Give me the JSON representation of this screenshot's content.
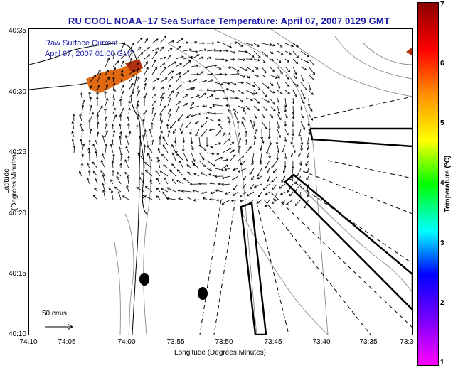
{
  "title": "RU COOL  NOAA−17  Sea Surface Temperature:  April 07, 2007 0129 GMT",
  "overlay": {
    "line1": "Raw Surface Current",
    "line2": "April 07, 2007 01:00 GMT"
  },
  "axes": {
    "ylabel": "Latitude (Degrees:Minutes)",
    "xlabel": "Longitude (Degrees:Minutes)",
    "yticks": [
      "40:35",
      "40:30",
      "40:25",
      "40:20",
      "40:15",
      "40:10"
    ],
    "xticks": [
      "74:10",
      "74:05",
      "74:00",
      "73:55",
      "73:50",
      "73:45",
      "73:40",
      "73:35",
      "73:3"
    ]
  },
  "scale": {
    "label": "50 cm/s"
  },
  "colorbar": {
    "title": "Temperature (°C)",
    "ticks": [
      "7",
      "6",
      "5",
      "4",
      "3",
      "2",
      "1"
    ],
    "range": [
      1,
      7
    ],
    "colors": [
      "#8b0000",
      "#ff0000",
      "#ff8c00",
      "#ffff00",
      "#00ff00",
      "#00ffff",
      "#0000ff",
      "#8000ff",
      "#ff00ff"
    ]
  },
  "icons": {
    "scale_arrow": "right-arrow",
    "current_vectors": "arrow"
  },
  "colors": {
    "title": "#1c1ca8",
    "sst_patch": "#e06a14",
    "sst_patch_dark": "#b03010"
  }
}
